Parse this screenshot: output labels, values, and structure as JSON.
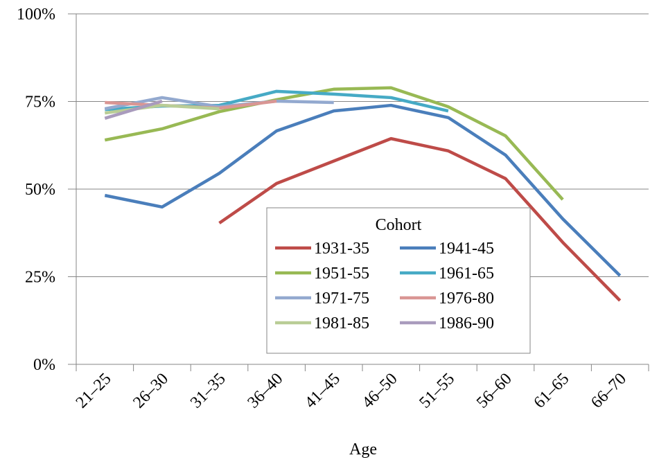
{
  "chart_data": {
    "type": "line",
    "x_label": "Age",
    "categories": [
      "21–25",
      "26–30",
      "31–35",
      "36–40",
      "41–45",
      "46–50",
      "51–55",
      "56–60",
      "61–65",
      "66–70"
    ],
    "ylim": [
      0,
      100
    ],
    "yticks": [
      {
        "value": 0,
        "label": "0%"
      },
      {
        "value": 25,
        "label": "25%"
      },
      {
        "value": 50,
        "label": "50%"
      },
      {
        "value": 75,
        "label": "75%"
      },
      {
        "value": 100,
        "label": "100%"
      }
    ],
    "grid": true,
    "legend": {
      "title": "Cohort",
      "position": "center"
    },
    "series": [
      {
        "name": "1931-35",
        "color": "#be4b48",
        "values": [
          null,
          null,
          40.3,
          51.6,
          58,
          64.4,
          60.9,
          53,
          34.8,
          18.2
        ]
      },
      {
        "name": "1941-45",
        "color": "#4a7ebb",
        "values": [
          48.2,
          44.9,
          54.5,
          66.6,
          72.3,
          73.9,
          70.4,
          59.7,
          41.5,
          25.3
        ]
      },
      {
        "name": "1951-55",
        "color": "#98b954",
        "values": [
          64,
          67.2,
          72.1,
          75.5,
          78.5,
          78.9,
          73.5,
          65.2,
          47,
          null
        ]
      },
      {
        "name": "1961-65",
        "color": "#46aac5",
        "values": [
          72.7,
          73.7,
          73.9,
          77.9,
          77.1,
          76.1,
          72.3,
          null,
          null,
          null
        ]
      },
      {
        "name": "1971-75",
        "color": "#93a9cf",
        "values": [
          72.9,
          76.1,
          73.5,
          75.1,
          74.7,
          null,
          null,
          null,
          null,
          null
        ]
      },
      {
        "name": "1976-80",
        "color": "#d99694",
        "values": [
          74.7,
          73.9,
          73.1,
          75.1,
          null,
          null,
          null,
          null,
          null,
          null
        ]
      },
      {
        "name": "1981-85",
        "color": "#b9cd96",
        "values": [
          71.7,
          73.9,
          72.9,
          null,
          null,
          null,
          null,
          null,
          null,
          null
        ]
      },
      {
        "name": "1986-90",
        "color": "#a99bbd",
        "values": [
          70.2,
          75.1,
          null,
          null,
          null,
          null,
          null,
          null,
          null,
          null
        ]
      }
    ]
  }
}
